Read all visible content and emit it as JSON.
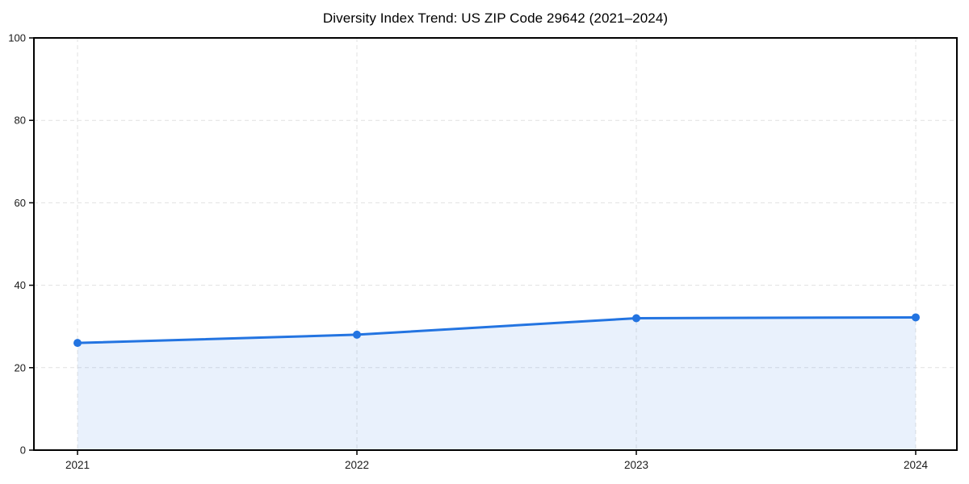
{
  "chart_data": {
    "type": "line",
    "title": "Diversity Index Trend: US ZIP Code 29642 (2021–2024)",
    "categories": [
      "2021",
      "2022",
      "2023",
      "2024"
    ],
    "series": [
      {
        "name": "Diversity Index",
        "values": [
          26,
          28,
          32,
          32.2
        ]
      }
    ],
    "xlabel": "",
    "ylabel": "",
    "ylim": [
      0,
      100
    ],
    "yticks": [
      0,
      20,
      40,
      60,
      80,
      100
    ],
    "grid": "dashed-both-axes",
    "legend": "none",
    "area_fill": true,
    "markers": "circle",
    "colors": {
      "line": "#2374e1",
      "marker": "#2374e1",
      "area_fill": "rgba(35, 116, 225, 0.10)",
      "grid": "#e1e1e1",
      "axis": "#000000",
      "text": "#1a1a1a",
      "background": "#ffffff"
    }
  }
}
